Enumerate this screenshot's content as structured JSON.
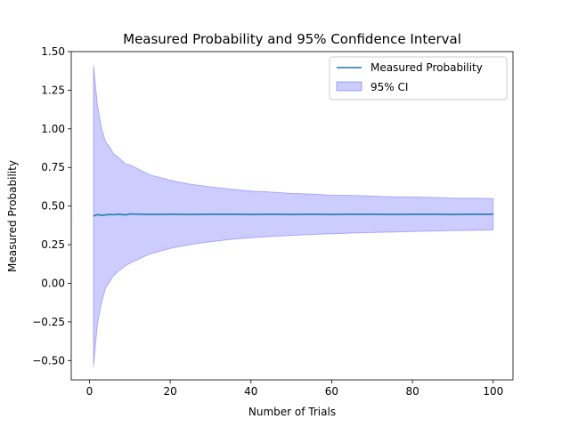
{
  "chart_data": {
    "type": "line",
    "title": "Measured Probability and 95% Confidence Interval",
    "xlabel": "Number of Trials",
    "ylabel": "Measured Probability",
    "xlim": [
      -4.5,
      104.9
    ],
    "ylim": [
      -0.625,
      1.5
    ],
    "xticks": [
      0,
      20,
      40,
      60,
      80,
      100
    ],
    "xtick_labels": [
      "0",
      "20",
      "40",
      "60",
      "80",
      "100"
    ],
    "yticks": [
      -0.5,
      -0.25,
      0.0,
      0.25,
      0.5,
      0.75,
      1.0,
      1.25,
      1.5
    ],
    "ytick_labels": [
      "−0.50",
      "−0.25",
      "0.00",
      "0.25",
      "0.50",
      "0.75",
      "1.00",
      "1.25",
      "1.50"
    ],
    "grid": false,
    "legend_position": "top-right",
    "legend": [
      "Measured Probability",
      "95% CI"
    ],
    "series": [
      {
        "name": "Measured Probability",
        "color": "#1f77b4",
        "x": [
          1,
          2,
          3,
          4,
          5,
          6,
          7,
          8,
          9,
          10,
          15,
          20,
          25,
          30,
          35,
          40,
          45,
          50,
          55,
          60,
          65,
          70,
          75,
          80,
          85,
          90,
          95,
          100
        ],
        "y": [
          0.435,
          0.445,
          0.44,
          0.443,
          0.446,
          0.444,
          0.447,
          0.445,
          0.443,
          0.449,
          0.446,
          0.447,
          0.446,
          0.447,
          0.447,
          0.446,
          0.447,
          0.446,
          0.447,
          0.446,
          0.447,
          0.447,
          0.446,
          0.447,
          0.447,
          0.446,
          0.447,
          0.447
        ]
      },
      {
        "name": "95% CI",
        "type": "band",
        "color": "#0000ff",
        "alpha": 0.2,
        "x": [
          1,
          2,
          3,
          4,
          5,
          6,
          7,
          8,
          9,
          10,
          15,
          20,
          25,
          30,
          35,
          40,
          45,
          50,
          55,
          60,
          65,
          70,
          75,
          80,
          85,
          90,
          95,
          100
        ],
        "lower": [
          -0.54,
          -0.26,
          -0.125,
          -0.03,
          0.01,
          0.05,
          0.075,
          0.095,
          0.115,
          0.13,
          0.19,
          0.226,
          0.251,
          0.269,
          0.284,
          0.295,
          0.303,
          0.31,
          0.316,
          0.321,
          0.325,
          0.329,
          0.332,
          0.335,
          0.338,
          0.341,
          0.343,
          0.345
        ],
        "upper": [
          1.41,
          1.15,
          1.005,
          0.916,
          0.882,
          0.838,
          0.819,
          0.795,
          0.771,
          0.768,
          0.702,
          0.668,
          0.641,
          0.625,
          0.61,
          0.597,
          0.591,
          0.582,
          0.578,
          0.571,
          0.569,
          0.565,
          0.56,
          0.559,
          0.556,
          0.551,
          0.551,
          0.549
        ]
      }
    ]
  }
}
